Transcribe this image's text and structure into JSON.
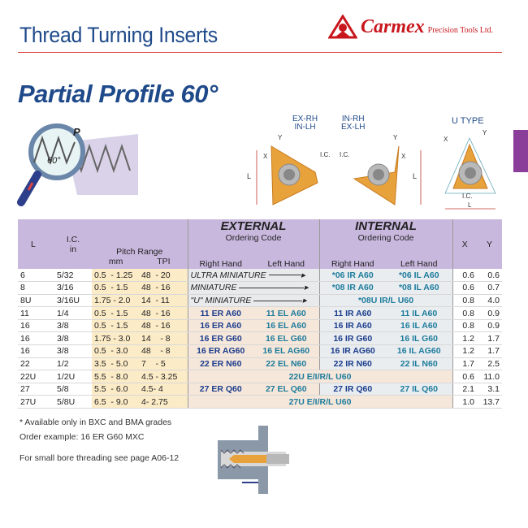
{
  "header": {
    "title": "Thread Turning Inserts",
    "brand": "Carmex",
    "brand_sub": "Precision Tools Ltd.",
    "accent": "#1f4a8a",
    "brand_color": "#c8161d"
  },
  "subtitle": "Partial Profile 60°",
  "illustration": {
    "pitch_label": "P",
    "angle_label": "60°"
  },
  "diagrams": {
    "left_label": [
      "EX-RH",
      "IN-LH"
    ],
    "mid_label": [
      "IN-RH",
      "EX-LH"
    ],
    "u_label": "U TYPE",
    "dims": {
      "x": "X",
      "y": "Y",
      "l": "L",
      "ic": "I.C."
    }
  },
  "table": {
    "headers": {
      "l": "L",
      "ic": "I.C.",
      "ic_unit": "in",
      "pitch": "Pitch Range",
      "mm": "mm",
      "tpi": "TPI",
      "external": "EXTERNAL",
      "internal": "INTERNAL",
      "ordering": "Ordering Code",
      "rh": "Right Hand",
      "lh": "Left Hand",
      "x": "X",
      "y": "Y"
    },
    "rows": [
      {
        "l": "6",
        "ic": "5/32",
        "mm": "0.5  - 1.25",
        "tpi": "48  - 20",
        "ext": "ULTRA MINIATURE",
        "irh": "*06 IR A60",
        "ilh": "*06 IL A60",
        "x": "0.6",
        "y": "0.6"
      },
      {
        "l": "8",
        "ic": "3/16",
        "mm": "0.5  - 1.5",
        "tpi": "48  - 16",
        "ext": "MINIATURE",
        "irh": "*08 IR A60",
        "ilh": "*08 IL A60",
        "x": "0.6",
        "y": "0.7"
      },
      {
        "l": "8U",
        "ic": "3/16U",
        "mm": "1.75 - 2.0",
        "tpi": "14  - 11",
        "ext": "\"U\" MINIATURE",
        "int": "*08U IR/L U60",
        "x": "0.8",
        "y": "4.0"
      },
      {
        "l": "11",
        "ic": "1/4",
        "mm": "0.5  - 1.5",
        "tpi": "48  - 16",
        "erh": "11 ER A60",
        "elh": "11 EL A60",
        "irh": "11 IR A60",
        "ilh": "11 IL A60",
        "x": "0.8",
        "y": "0.9"
      },
      {
        "l": "16",
        "ic": "3/8",
        "mm": "0.5  - 1.5",
        "tpi": "48  - 16",
        "erh": "16 ER A60",
        "elh": "16 EL A60",
        "irh": "16 IR A60",
        "ilh": "16 IL A60",
        "x": "0.8",
        "y": "0.9"
      },
      {
        "l": "16",
        "ic": "3/8",
        "mm": "1.75 - 3.0",
        "tpi": "14    - 8",
        "erh": "16 ER G60",
        "elh": "16 EL G60",
        "irh": "16 IR G60",
        "ilh": "16 IL G60",
        "x": "1.2",
        "y": "1.7"
      },
      {
        "l": "16",
        "ic": "3/8",
        "mm": "0.5  - 3.0",
        "tpi": "48    - 8",
        "erh": "16 ER AG60",
        "elh": "16 EL AG60",
        "irh": "16 IR AG60",
        "ilh": "16 IL AG60",
        "x": "1.2",
        "y": "1.7"
      },
      {
        "l": "22",
        "ic": "1/2",
        "mm": "3.5  - 5.0",
        "tpi": "7    - 5",
        "erh": "22 ER N60",
        "elh": "22 EL N60",
        "irh": "22 IR N60",
        "ilh": "22 IL N60",
        "x": "1.7",
        "y": "2.5"
      },
      {
        "l": "22U",
        "ic": "1/2U",
        "mm": "5.5  - 8.0",
        "tpi": "4.5 - 3.25",
        "all": "22U E/I/R/L U60",
        "x": "0.6",
        "y": "11.0"
      },
      {
        "l": "27",
        "ic": "5/8",
        "mm": "5.5  - 6.0",
        "tpi": "4.5- 4",
        "erh": "27 ER Q60",
        "elh": "27 EL Q60",
        "irh": "27 IR Q60",
        "ilh": "27 IL Q60",
        "x": "2.1",
        "y": "3.1"
      },
      {
        "l": "27U",
        "ic": "5/8U",
        "mm": "6.5  - 9.0",
        "tpi": "4- 2.75",
        "all": "27U E/I/R/L U60",
        "x": "1.0",
        "y": "13.7"
      }
    ]
  },
  "notes": [
    "* Available only in BXC and BMA grades",
    "Order example: 16 ER G60 MXC",
    "For small bore threading see page A06-12"
  ]
}
